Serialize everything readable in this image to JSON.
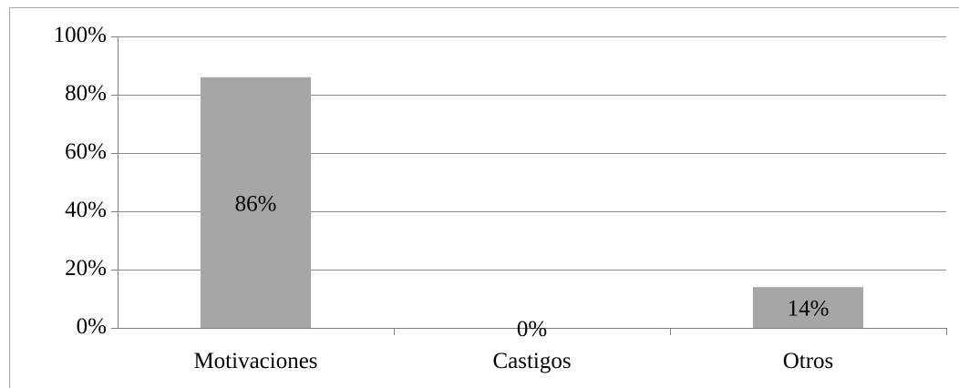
{
  "chart_data": {
    "type": "bar",
    "categories": [
      "Motivaciones",
      "Castigos",
      "Otros"
    ],
    "values": [
      86,
      0,
      14
    ],
    "data_labels": [
      "86%",
      "0%",
      "14%"
    ],
    "title": "",
    "xlabel": "",
    "ylabel": "",
    "ylim": [
      0,
      100
    ],
    "y_ticks": [
      0,
      20,
      40,
      60,
      80,
      100
    ],
    "y_tick_labels": [
      "0%",
      "20%",
      "40%",
      "60%",
      "80%",
      "100%"
    ],
    "grid": true,
    "legend": "none",
    "bar_color": "#a6a6a6"
  }
}
